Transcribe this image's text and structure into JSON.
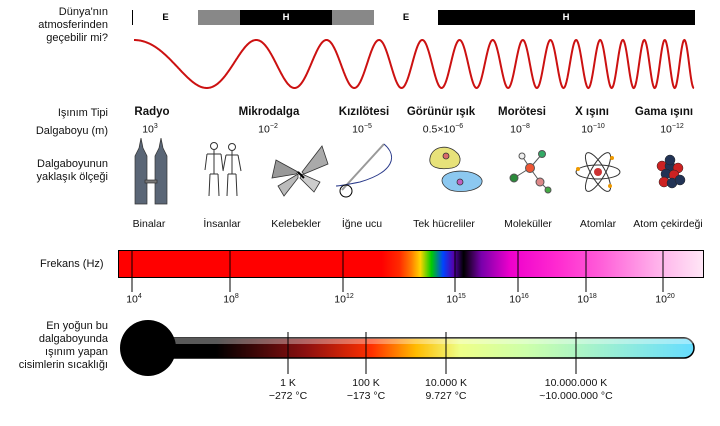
{
  "labels": {
    "atmosphere": [
      "Dünya'nın",
      "atmosferinden",
      "geçebilir mi?"
    ],
    "radiation_type": "Işınım Tipi",
    "wavelength": "Dalgaboyu (m)",
    "scale": [
      "Dalgaboyunun",
      "yaklaşık ölçeği"
    ],
    "frequency": "Frekans (Hz)",
    "temperature": [
      "En yoğun bu",
      "dalgaboyunda",
      "ışınım yapan",
      "cisimlerin sıcaklığı"
    ]
  },
  "atmosphere_bar": [
    {
      "label": "E",
      "color": "#ffffff"
    },
    {
      "label": "",
      "color": "#888888"
    },
    {
      "label": "H",
      "color": "#000000"
    },
    {
      "label": "",
      "color": "#888888"
    },
    {
      "label": "E",
      "color": "#ffffff"
    },
    {
      "label": "H",
      "color": "#000000"
    }
  ],
  "types": [
    {
      "name": "Radyo",
      "base": "10",
      "exp": "3"
    },
    {
      "name": "Mikrodalga",
      "base": "10",
      "exp": "−2"
    },
    {
      "name": "Kızılötesi",
      "base": "10",
      "exp": "−5"
    },
    {
      "name": "Görünür ışık",
      "base": "0.5×10",
      "exp": "−6"
    },
    {
      "name": "Morötesi",
      "base": "10",
      "exp": "−8"
    },
    {
      "name": "X ışını",
      "base": "10",
      "exp": "−10"
    },
    {
      "name": "Gama ışını",
      "base": "10",
      "exp": "−12"
    }
  ],
  "scale_objects": [
    {
      "label": "Binalar",
      "icon": "buildings-icon"
    },
    {
      "label": "İnsanlar",
      "icon": "humans-icon"
    },
    {
      "label": "Kelebekler",
      "icon": "butterfly-icon"
    },
    {
      "label": "İğne ucu",
      "icon": "needle-icon"
    },
    {
      "label": "Tek hücreliler",
      "icon": "protozoa-icon"
    },
    {
      "label": "Moleküller",
      "icon": "molecule-icon"
    },
    {
      "label": "Atomlar",
      "icon": "atom-icon"
    },
    {
      "label": "Atom çekirdeği",
      "icon": "nucleus-icon"
    }
  ],
  "frequency_ticks": [
    {
      "base": "10",
      "exp": "4"
    },
    {
      "base": "10",
      "exp": "8"
    },
    {
      "base": "10",
      "exp": "12"
    },
    {
      "base": "10",
      "exp": "15"
    },
    {
      "base": "10",
      "exp": "16"
    },
    {
      "base": "10",
      "exp": "18"
    },
    {
      "base": "10",
      "exp": "20"
    }
  ],
  "temperature_ticks": [
    {
      "k": "1 K",
      "c": "−272 °C"
    },
    {
      "k": "100 K",
      "c": "−173 °C"
    },
    {
      "k": "10.000 K",
      "c": "9.727 °C"
    },
    {
      "k": "10.000.000 K",
      "c": "~10.000.000 °C"
    }
  ],
  "colors": {
    "wave": "#cc1111",
    "spectrum_red": "#ff0000",
    "spectrum_magenta": "#ff00cc"
  }
}
